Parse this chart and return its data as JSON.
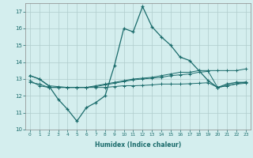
{
  "xlabel": "Humidex (Indice chaleur)",
  "ylabel": "",
  "xlim": [
    -0.5,
    23.5
  ],
  "ylim": [
    10,
    17.5
  ],
  "yticks": [
    10,
    11,
    12,
    13,
    14,
    15,
    16,
    17
  ],
  "xticks": [
    0,
    1,
    2,
    3,
    4,
    5,
    6,
    7,
    8,
    9,
    10,
    11,
    12,
    13,
    14,
    15,
    16,
    17,
    18,
    19,
    20,
    21,
    22,
    23
  ],
  "background_color": "#d4eeee",
  "plot_bg_color": "#d4eeee",
  "grid_color": "#b0cccc",
  "line_color": "#1a6b6b",
  "line1_x": [
    0,
    1,
    2,
    3,
    4,
    5,
    6,
    7,
    8,
    9,
    10,
    11,
    12,
    13,
    14,
    15,
    16,
    17,
    18,
    19,
    20,
    21,
    22,
    23
  ],
  "line1_y": [
    13.2,
    13.0,
    12.6,
    11.8,
    11.2,
    10.5,
    11.3,
    11.6,
    12.0,
    13.8,
    16.0,
    15.8,
    17.3,
    16.1,
    15.5,
    15.0,
    14.3,
    14.1,
    13.5,
    12.9,
    12.5,
    12.7,
    12.8,
    12.8
  ],
  "line2_x": [
    0,
    1,
    2,
    3,
    4,
    5,
    6,
    7,
    8,
    9,
    10,
    11,
    12,
    13,
    14,
    15,
    16,
    17,
    18,
    19,
    20,
    21,
    22,
    23
  ],
  "line2_y": [
    12.9,
    12.6,
    12.5,
    12.5,
    12.5,
    12.5,
    12.5,
    12.6,
    12.7,
    12.8,
    12.9,
    13.0,
    13.05,
    13.1,
    13.2,
    13.3,
    13.4,
    13.4,
    13.5,
    13.5,
    13.5,
    13.5,
    13.5,
    13.6
  ],
  "line3_x": [
    0,
    1,
    2,
    3,
    4,
    5,
    6,
    7,
    8,
    9,
    10,
    11,
    12,
    13,
    14,
    15,
    16,
    17,
    18,
    19,
    20,
    21,
    22,
    23
  ],
  "line3_y": [
    12.8,
    12.7,
    12.5,
    12.5,
    12.5,
    12.5,
    12.5,
    12.5,
    12.5,
    12.55,
    12.6,
    12.6,
    12.62,
    12.65,
    12.7,
    12.7,
    12.7,
    12.72,
    12.75,
    12.78,
    12.5,
    12.6,
    12.7,
    12.75
  ],
  "line4_x": [
    0,
    1,
    2,
    3,
    4,
    5,
    6,
    7,
    8,
    9,
    10,
    11,
    12,
    13,
    14,
    15,
    16,
    17,
    18,
    19,
    20,
    21,
    22,
    23
  ],
  "line4_y": [
    13.2,
    13.0,
    12.6,
    12.55,
    12.5,
    12.5,
    12.5,
    12.55,
    12.65,
    12.75,
    12.85,
    12.95,
    13.0,
    13.05,
    13.1,
    13.2,
    13.25,
    13.3,
    13.4,
    13.45,
    12.5,
    12.6,
    12.72,
    12.82
  ]
}
